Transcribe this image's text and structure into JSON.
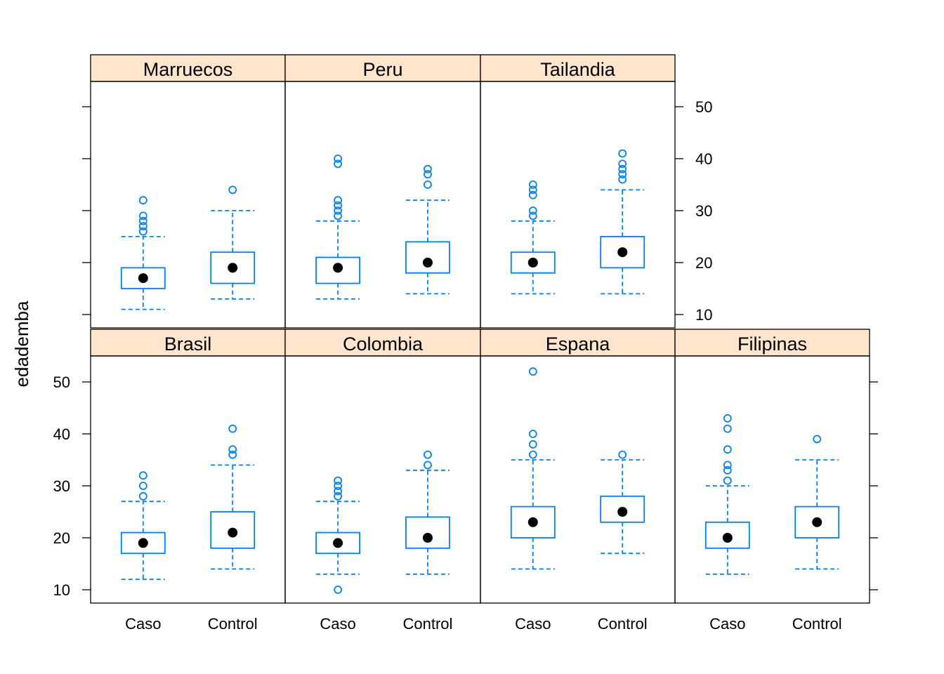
{
  "colors": {
    "box": "#0080ff",
    "strip": "#ffe5cc",
    "median": "#000000"
  },
  "chart_data": {
    "type": "boxplot",
    "ylabel": "edademba",
    "categories": [
      "Caso",
      "Control"
    ],
    "y_ticks": [
      10,
      20,
      30,
      40,
      50
    ],
    "ylim": [
      7,
      54.5
    ],
    "panels": [
      {
        "name": "Marruecos",
        "boxes": [
          {
            "category": "Caso",
            "whisker_low": 11,
            "q1": 15,
            "median": 17,
            "q3": 19,
            "whisker_high": 25,
            "outliers": [
              26,
              27,
              28,
              29,
              32
            ]
          },
          {
            "category": "Control",
            "whisker_low": 13,
            "q1": 16,
            "median": 19,
            "q3": 22,
            "whisker_high": 30,
            "outliers": [
              34
            ]
          }
        ]
      },
      {
        "name": "Peru",
        "boxes": [
          {
            "category": "Caso",
            "whisker_low": 13,
            "q1": 16,
            "median": 19,
            "q3": 21,
            "whisker_high": 28,
            "outliers": [
              29,
              30,
              31,
              32,
              39,
              40
            ]
          },
          {
            "category": "Control",
            "whisker_low": 14,
            "q1": 18,
            "median": 20,
            "q3": 24,
            "whisker_high": 32,
            "outliers": [
              35,
              37,
              38
            ]
          }
        ]
      },
      {
        "name": "Tailandia",
        "boxes": [
          {
            "category": "Caso",
            "whisker_low": 14,
            "q1": 18,
            "median": 20,
            "q3": 22,
            "whisker_high": 28,
            "outliers": [
              29,
              30,
              33,
              34,
              35
            ]
          },
          {
            "category": "Control",
            "whisker_low": 14,
            "q1": 19,
            "median": 22,
            "q3": 25,
            "whisker_high": 34,
            "outliers": [
              36,
              37,
              38,
              39,
              41
            ]
          }
        ]
      },
      {
        "name": "Brasil",
        "boxes": [
          {
            "category": "Caso",
            "whisker_low": 12,
            "q1": 17,
            "median": 19,
            "q3": 21,
            "whisker_high": 27,
            "outliers": [
              28,
              30,
              32
            ]
          },
          {
            "category": "Control",
            "whisker_low": 14,
            "q1": 18,
            "median": 21,
            "q3": 25,
            "whisker_high": 34,
            "outliers": [
              36,
              37,
              41
            ]
          }
        ]
      },
      {
        "name": "Colombia",
        "boxes": [
          {
            "category": "Caso",
            "whisker_low": 13,
            "q1": 17,
            "median": 19,
            "q3": 21,
            "whisker_high": 27,
            "outliers": [
              10,
              28,
              29,
              30,
              31
            ]
          },
          {
            "category": "Control",
            "whisker_low": 13,
            "q1": 18,
            "median": 20,
            "q3": 24,
            "whisker_high": 33,
            "outliers": [
              34,
              36
            ]
          }
        ]
      },
      {
        "name": "Espana",
        "boxes": [
          {
            "category": "Caso",
            "whisker_low": 14,
            "q1": 20,
            "median": 23,
            "q3": 26,
            "whisker_high": 35,
            "outliers": [
              36,
              38,
              40,
              52
            ]
          },
          {
            "category": "Control",
            "whisker_low": 17,
            "q1": 23,
            "median": 25,
            "q3": 28,
            "whisker_high": 35,
            "outliers": [
              36
            ]
          }
        ]
      },
      {
        "name": "Filipinas",
        "boxes": [
          {
            "category": "Caso",
            "whisker_low": 13,
            "q1": 18,
            "median": 20,
            "q3": 23,
            "whisker_high": 30,
            "outliers": [
              31,
              33,
              34,
              37,
              41,
              43
            ]
          },
          {
            "category": "Control",
            "whisker_low": 14,
            "q1": 20,
            "median": 23,
            "q3": 26,
            "whisker_high": 35,
            "outliers": [
              39
            ]
          }
        ]
      }
    ]
  }
}
